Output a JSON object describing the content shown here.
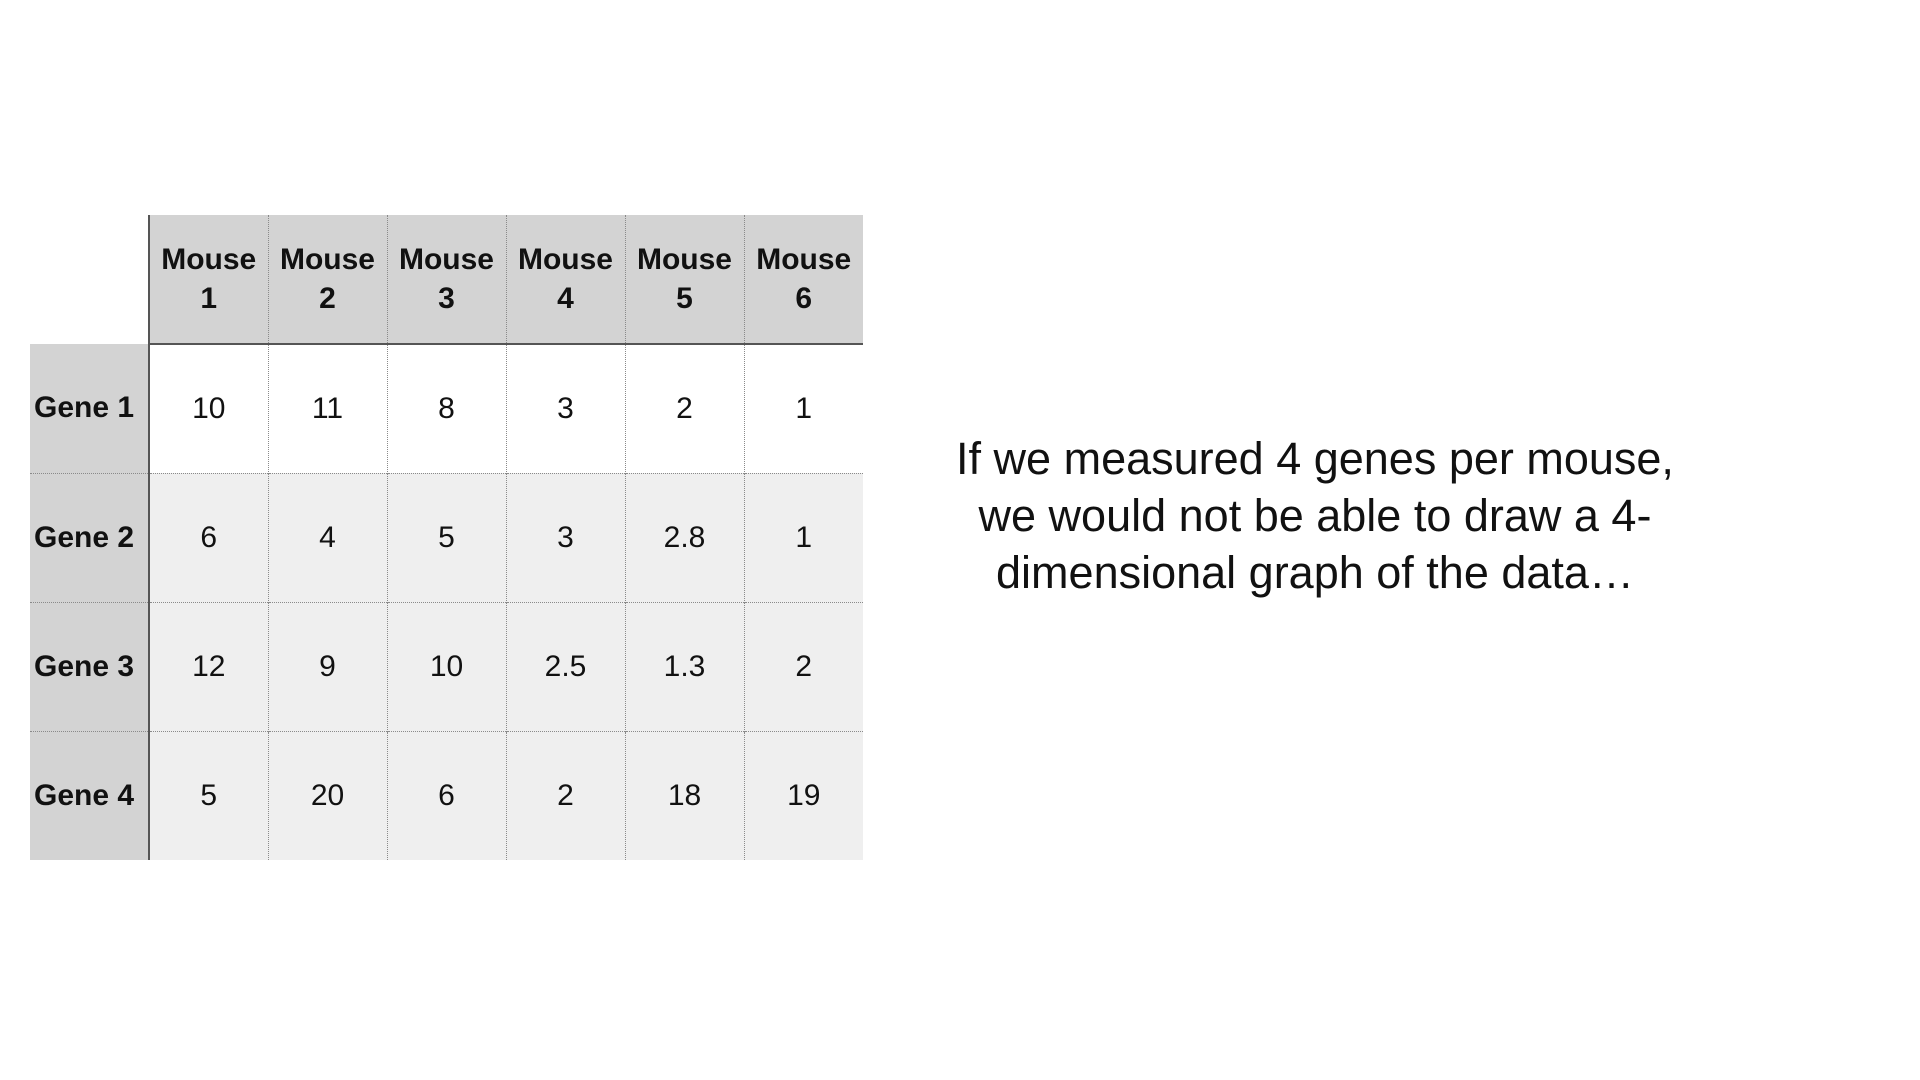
{
  "table": {
    "columns": [
      {
        "line1": "Mouse",
        "line2": "1"
      },
      {
        "line1": "Mouse",
        "line2": "2"
      },
      {
        "line1": "Mouse",
        "line2": "3"
      },
      {
        "line1": "Mouse",
        "line2": "4"
      },
      {
        "line1": "Mouse",
        "line2": "5"
      },
      {
        "line1": "Mouse",
        "line2": "6"
      }
    ],
    "rows": [
      {
        "label": "Gene 1",
        "values": [
          "10",
          "11",
          "8",
          "3",
          "2",
          "1"
        ]
      },
      {
        "label": "Gene 2",
        "values": [
          "6",
          "4",
          "5",
          "3",
          "2.8",
          "1"
        ]
      },
      {
        "label": "Gene 3",
        "values": [
          "12",
          "9",
          "10",
          "2.5",
          "1.3",
          "2"
        ]
      },
      {
        "label": "Gene 4",
        "values": [
          "5",
          "20",
          "6",
          "2",
          "18",
          "19"
        ]
      }
    ]
  },
  "caption": "If we measured 4 genes per mouse, we would not be able to draw a 4-dimensional graph of the data…"
}
